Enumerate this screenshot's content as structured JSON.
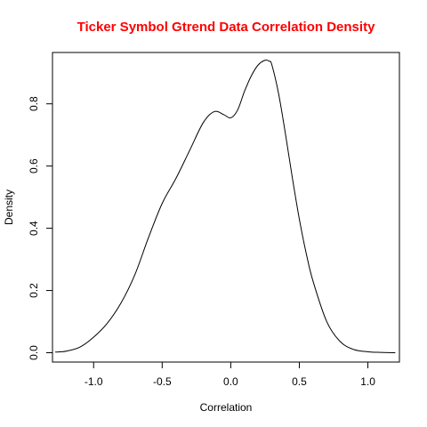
{
  "chart_data": {
    "type": "line",
    "title": "Ticker Symbol Gtrend Data Correlation Density",
    "xlabel": "Correlation",
    "ylabel": "Density",
    "xlim": [
      -1.3,
      1.23
    ],
    "ylim": [
      -0.03,
      0.965
    ],
    "xticks": [
      -1.0,
      -0.5,
      0.0,
      0.5,
      1.0
    ],
    "xtick_labels": [
      "-1.0",
      "-0.5",
      "0.0",
      "0.5",
      "1.0"
    ],
    "yticks": [
      0.0,
      0.2,
      0.4,
      0.6,
      0.8
    ],
    "ytick_labels": [
      "0.0",
      "0.2",
      "0.4",
      "0.6",
      "0.8"
    ],
    "grid": false,
    "series": [
      {
        "x": [
          -1.28,
          -1.2,
          -1.1,
          -1.0,
          -0.9,
          -0.8,
          -0.7,
          -0.6,
          -0.5,
          -0.4,
          -0.3,
          -0.2,
          -0.12,
          -0.05,
          0.0,
          0.05,
          0.1,
          0.15,
          0.2,
          0.25,
          0.28,
          0.3,
          0.35,
          0.4,
          0.45,
          0.5,
          0.55,
          0.6,
          0.7,
          0.8,
          0.9,
          1.0,
          1.1,
          1.2
        ],
        "y": [
          0.002,
          0.005,
          0.018,
          0.05,
          0.095,
          0.16,
          0.25,
          0.37,
          0.48,
          0.56,
          0.65,
          0.74,
          0.775,
          0.765,
          0.755,
          0.78,
          0.84,
          0.89,
          0.925,
          0.94,
          0.937,
          0.925,
          0.83,
          0.7,
          0.56,
          0.43,
          0.32,
          0.23,
          0.1,
          0.035,
          0.01,
          0.003,
          0.001,
          0.0
        ]
      }
    ]
  },
  "colors": {
    "title": "#ff0000",
    "line": "#000000",
    "axis": "#000000"
  }
}
